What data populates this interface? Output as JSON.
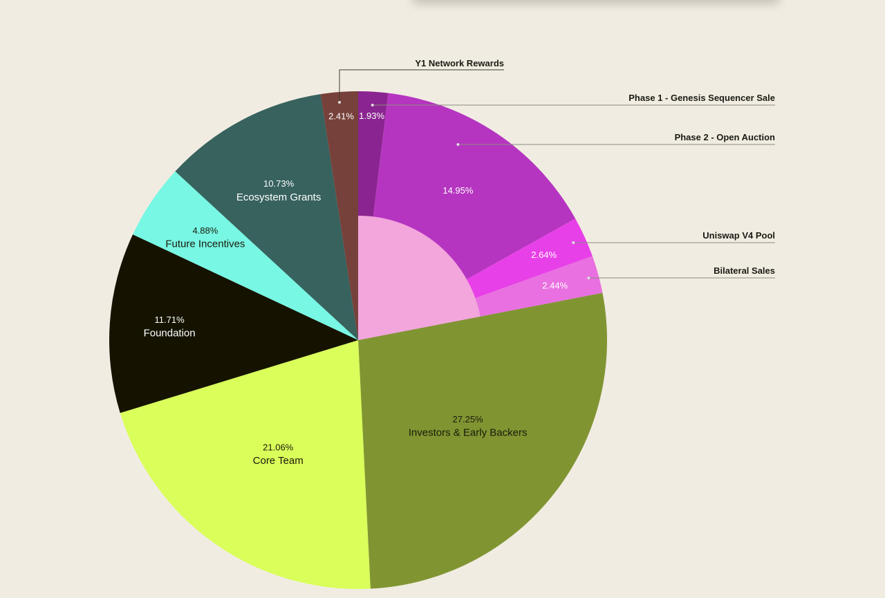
{
  "chart_data": {
    "type": "pie",
    "title": "",
    "slices": [
      {
        "name": "Phase 1 - Genesis Sequencer Sale",
        "value": 1.93,
        "label": "1.93%",
        "color": "#8a2490",
        "text_color": "#ffffff",
        "callout": true
      },
      {
        "name": "Phase 2 - Open Auction",
        "value": 14.95,
        "label": "14.95%",
        "color": "#b535c0",
        "text_color": "#ffffff",
        "callout": true
      },
      {
        "name": "Uniswap V4 Pool",
        "value": 2.64,
        "label": "2.64%",
        "color": "#e840e8",
        "text_color": "#ffffff",
        "callout": true
      },
      {
        "name": "Bilateral Sales",
        "value": 2.44,
        "label": "2.44%",
        "color": "#e870e0",
        "text_color": "#ffffff",
        "callout": true
      },
      {
        "name": "Investors & Early Backers",
        "value": 27.25,
        "label": "27.25%",
        "color": "#809532",
        "text_color": "#1a1a0a",
        "callout": false
      },
      {
        "name": "Core Team",
        "value": 21.06,
        "label": "21.06%",
        "color": "#dafe5a",
        "text_color": "#1a1a0a",
        "callout": false
      },
      {
        "name": "Foundation",
        "value": 11.71,
        "label": "11.71%",
        "color": "#151300",
        "text_color": "#ffffff",
        "callout": false
      },
      {
        "name": "Future Incentives",
        "value": 4.88,
        "label": "4.88%",
        "color": "#78f7e4",
        "text_color": "#1a1a0a",
        "callout": false
      },
      {
        "name": "Ecosystem Grants",
        "value": 10.73,
        "label": "10.73%",
        "color": "#37625e",
        "text_color": "#ffffff",
        "callout": false
      },
      {
        "name": "Y1 Network Rewards",
        "value": 2.41,
        "label": "2.41%",
        "color": "#76413a",
        "text_color": "#ffffff",
        "callout": true
      }
    ],
    "inner_group": {
      "start_index": 0,
      "end_index": 3,
      "color": "#f2a6dc"
    },
    "legend": "callouts"
  }
}
